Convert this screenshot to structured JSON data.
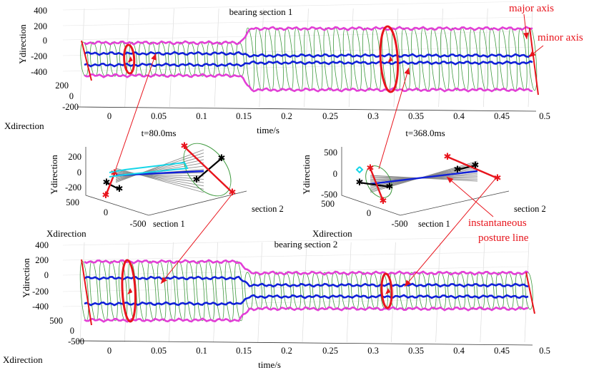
{
  "colors": {
    "pink": "#e23fd6",
    "blue": "#1020d8",
    "green": "#3f9a3f",
    "red": "#e8141c",
    "grey": "#8c8c8c",
    "cyan": "#16d6e8",
    "black": "#000000"
  },
  "chart_data": [
    {
      "id": "bearing-section-1",
      "type": "line",
      "title": "bearing section 1",
      "xlabel": "time/s",
      "ylabel": "Ydirection",
      "zlabel": "Xdirection",
      "xlim": [
        0,
        0.5
      ],
      "x_ticks": [
        "0",
        "0.05",
        "0.1",
        "0.15",
        "0.2",
        "0.25",
        "0.3",
        "0.35",
        "0.4",
        "0.45",
        "0.5"
      ],
      "y_ticks": [
        "400",
        "200",
        "0",
        "-200",
        "-400"
      ],
      "z_ticks": [
        "200",
        "0",
        "-200"
      ],
      "step_time": 0.18,
      "envelope_before": [
        -330,
        330
      ],
      "envelope_after": [
        -450,
        450
      ],
      "annotations": [
        "major axis",
        "minor axis"
      ]
    },
    {
      "id": "inset-t80",
      "type": "line",
      "title": "t=80.0ms",
      "ylabel": "Ydirection",
      "zlabel": "Xdirection",
      "y_ticks": [
        "200",
        "0",
        "-200"
      ],
      "z_ticks": [
        "500",
        "0",
        "-500"
      ],
      "axis_labels": [
        "section 1",
        "section 2"
      ]
    },
    {
      "id": "inset-t368",
      "type": "line",
      "title": "t=368.0ms",
      "ylabel": "Ydirection",
      "zlabel": "Xdirection",
      "y_ticks": [
        "500",
        "0",
        "-500"
      ],
      "z_ticks": [
        "500",
        "0",
        "-500"
      ],
      "axis_labels": [
        "section 1",
        "section 2"
      ],
      "annotations": [
        "instantaneous posture line"
      ]
    },
    {
      "id": "bearing-section-2",
      "type": "line",
      "title": "bearing section 2",
      "xlabel": "time/s",
      "ylabel": "Ydirection",
      "zlabel": "Xdirection",
      "xlim": [
        0,
        0.5
      ],
      "x_ticks": [
        "0",
        "0.05",
        "0.1",
        "0.15",
        "0.2",
        "0.25",
        "0.3",
        "0.35",
        "0.4",
        "0.45",
        "0.5"
      ],
      "y_ticks": [
        "400",
        "200",
        "0",
        "-200",
        "-400"
      ],
      "z_ticks": [
        "500",
        "0",
        "-500"
      ],
      "step_time": 0.18,
      "envelope_before": [
        -450,
        450
      ],
      "envelope_after": [
        -300,
        300
      ]
    }
  ],
  "labels": {
    "main1_title": "bearing section 1",
    "main2_title": "bearing section 2",
    "time_label": "time/s",
    "ydir": "Ydirection",
    "xdir": "Xdirection",
    "inset1_title": "t=80.0ms",
    "inset2_title": "t=368.0ms",
    "section1": "section 1",
    "section2": "section 2",
    "major_axis": "major axis",
    "minor_axis": "minor axis",
    "posture_line_1": "instantaneous",
    "posture_line_2": "posture line"
  }
}
